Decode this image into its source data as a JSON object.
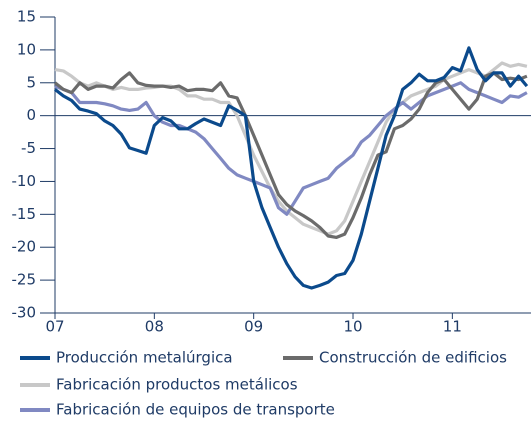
{
  "chart_data": {
    "type": "line",
    "x": [
      0,
      1,
      2,
      3,
      4,
      5,
      6,
      7,
      8,
      9,
      10,
      11,
      12,
      13,
      14,
      15,
      16,
      17,
      18,
      19,
      20,
      21,
      22,
      23,
      24,
      25,
      26,
      27,
      28,
      29,
      30,
      31,
      32,
      33,
      34,
      35,
      36,
      37,
      38,
      39,
      40,
      41,
      42,
      43,
      44,
      45,
      46,
      47,
      48,
      49,
      50,
      51,
      52,
      53,
      54,
      55,
      56,
      57
    ],
    "xlim": [
      0,
      57.5
    ],
    "xticks": [
      {
        "value": 0,
        "label": "07"
      },
      {
        "value": 12,
        "label": "08"
      },
      {
        "value": 24,
        "label": "09"
      },
      {
        "value": 36,
        "label": "10"
      },
      {
        "value": 48,
        "label": "11"
      }
    ],
    "ylim": [
      -30,
      15
    ],
    "yticks": [
      -30,
      -25,
      -20,
      -15,
      -10,
      -5,
      0,
      5,
      10,
      15
    ],
    "series": [
      {
        "name": "Fabricación productos metálicos",
        "color": "#c8c8c8",
        "values": [
          7,
          6.8,
          6,
          5,
          4.5,
          5,
          4.5,
          4,
          4.3,
          4,
          4,
          4.2,
          4.3,
          4.5,
          4.5,
          4,
          3,
          3,
          2.5,
          2.5,
          2,
          2,
          0,
          -3,
          -6,
          -8.5,
          -11,
          -13,
          -14.5,
          -15.5,
          -16.5,
          -17,
          -17.5,
          -18,
          -17.5,
          -16,
          -13,
          -10,
          -7,
          -4,
          -1,
          1,
          2,
          3,
          3.5,
          4,
          4.5,
          5.5,
          6,
          6.5,
          7,
          6.5,
          6,
          7,
          8,
          7.5,
          7.8,
          7.5
        ]
      },
      {
        "name": "Fabricación de equipos de transporte",
        "color": "#8089c2",
        "values": [
          4.5,
          4,
          3.5,
          2,
          2,
          2,
          1.8,
          1.5,
          1,
          0.8,
          1,
          2,
          0,
          -1,
          -1.5,
          -1.5,
          -2,
          -2.5,
          -3.5,
          -5,
          -6.5,
          -8,
          -9,
          -9.5,
          -10,
          -10.5,
          -11,
          -14,
          -15,
          -13,
          -11,
          -10.5,
          -10,
          -9.5,
          -8,
          -7,
          -6,
          -4,
          -3,
          -1.5,
          0,
          1,
          2,
          1,
          2,
          3,
          3.5,
          4,
          4.5,
          5,
          4,
          3.5,
          3,
          2.5,
          2,
          3,
          2.8,
          3.5
        ]
      },
      {
        "name": "Construcción de edificios",
        "color": "#6b6b6b",
        "values": [
          5,
          4,
          3.5,
          5,
          4,
          4.5,
          4.5,
          4.2,
          5.5,
          6.5,
          5,
          4.6,
          4.5,
          4.5,
          4.3,
          4.5,
          3.8,
          4,
          4,
          3.8,
          5,
          3,
          2.7,
          0,
          -3,
          -6,
          -9,
          -12,
          -13.5,
          -14.5,
          -15.2,
          -16,
          -17,
          -18.3,
          -18.5,
          -18,
          -15.5,
          -12.5,
          -9,
          -6,
          -5.5,
          -2,
          -1.5,
          -0.5,
          1,
          3.5,
          5,
          5.5,
          4,
          2.5,
          1,
          2.5,
          6,
          6.5,
          5.5,
          5.7,
          5.5,
          6
        ]
      },
      {
        "name": "Producción metalúrgica",
        "color": "#0b4a8c",
        "values": [
          4,
          3,
          2.3,
          1,
          0.7,
          0.3,
          -0.8,
          -1.5,
          -2.8,
          -4.9,
          -5.3,
          -5.7,
          -1.5,
          -0.3,
          -0.8,
          -2,
          -2,
          -1.2,
          -0.5,
          -1,
          -1.5,
          1.5,
          0.8,
          0,
          -10,
          -14,
          -17,
          -20,
          -22.5,
          -24.5,
          -25.8,
          -26.2,
          -25.8,
          -25.3,
          -24.3,
          -24,
          -22,
          -18,
          -13,
          -8,
          -3,
          0,
          4,
          5,
          6.3,
          5.3,
          5.3,
          5.8,
          7.3,
          6.8,
          10.3,
          7,
          5.3,
          6.5,
          6.5,
          4.5,
          6,
          4.5
        ]
      }
    ]
  }
}
